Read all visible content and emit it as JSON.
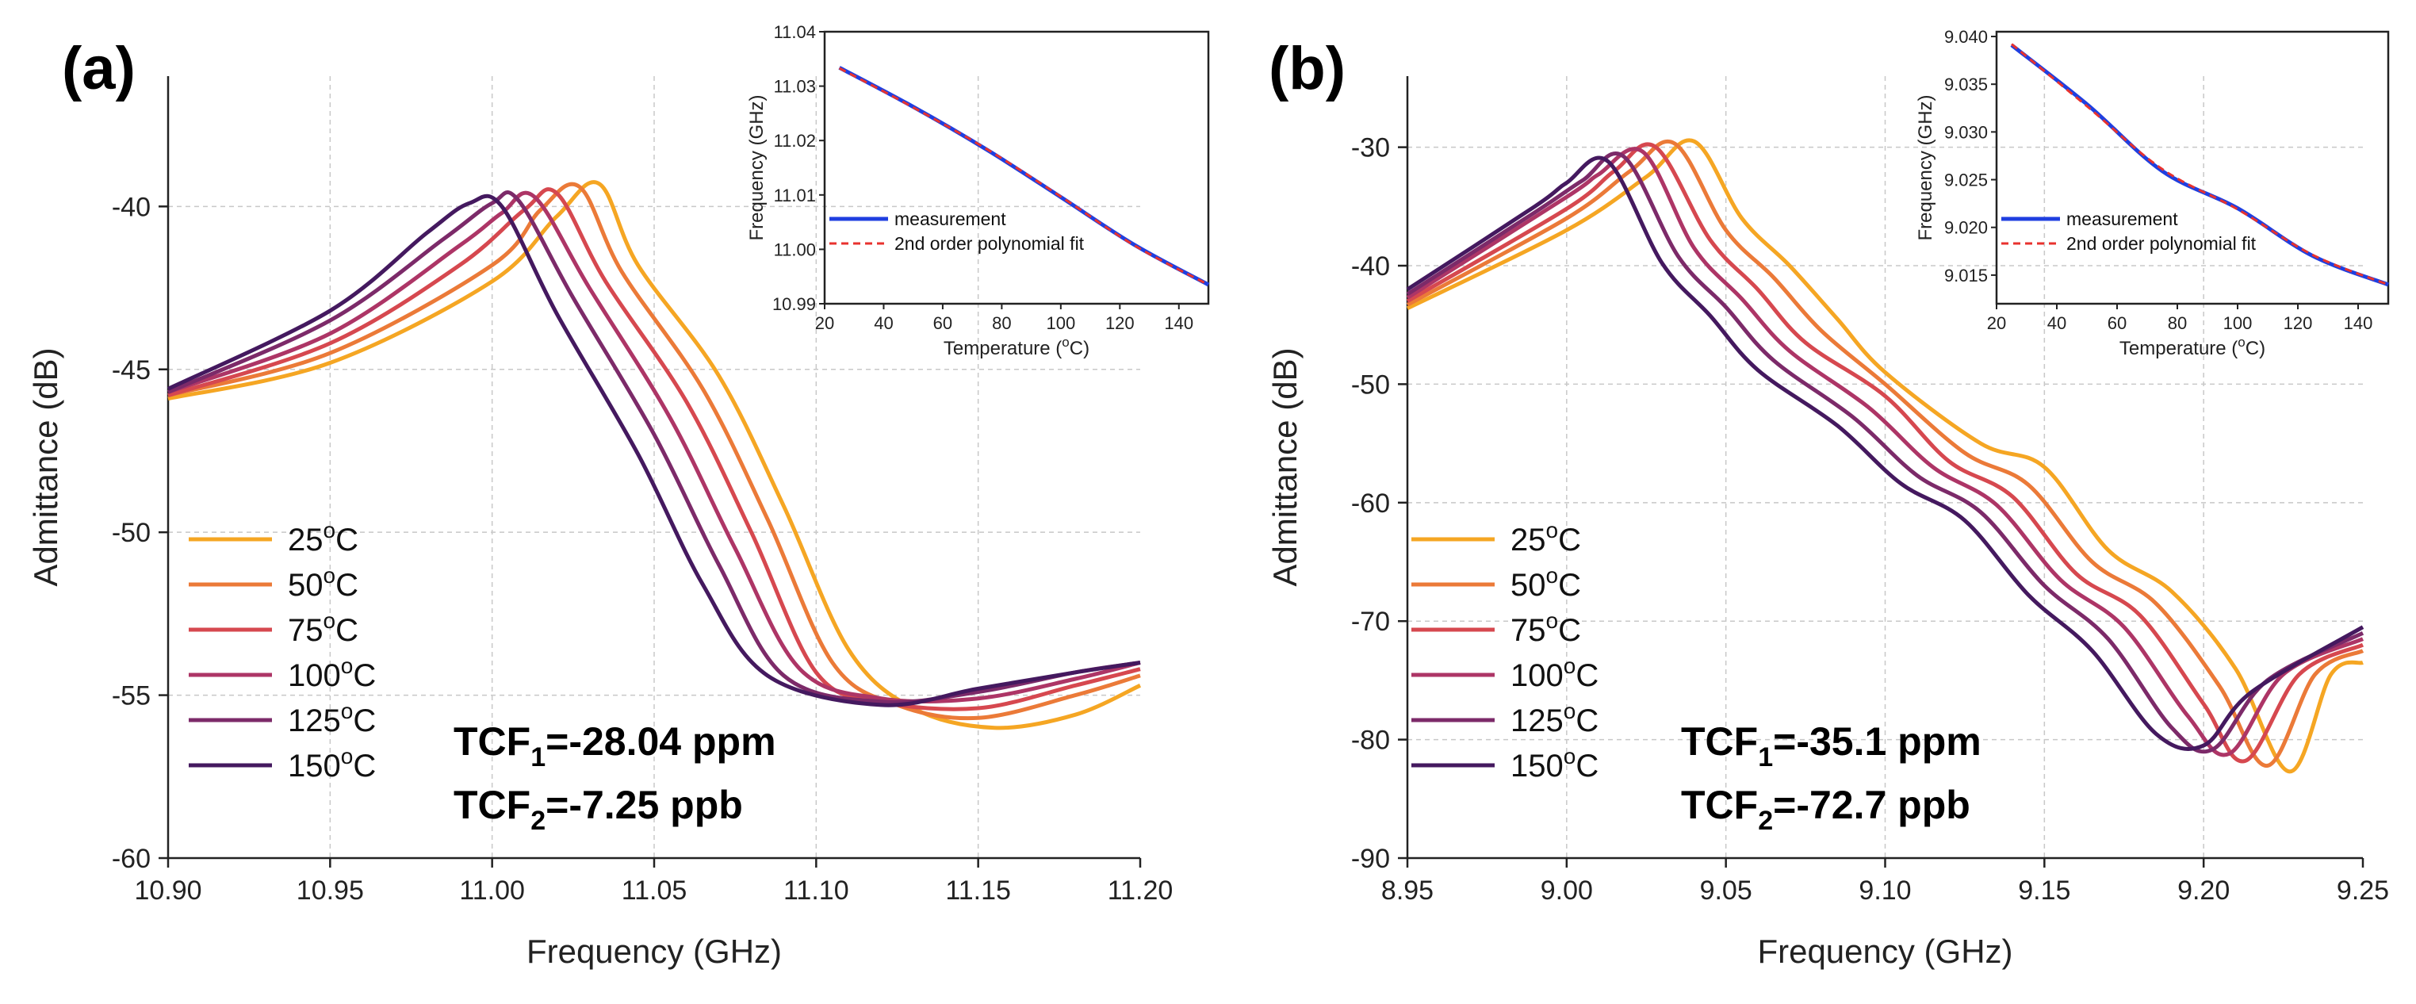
{
  "chart_data": [
    {
      "type": "line",
      "panel_label": "(a)",
      "xlabel": "Frequency (GHz)",
      "ylabel": "Admittance (dB)",
      "xlim": [
        10.9,
        11.2
      ],
      "ylim": [
        -60,
        -36
      ],
      "xticks": [
        10.9,
        10.95,
        11.0,
        11.05,
        11.1,
        11.15,
        11.2
      ],
      "xtick_labels": [
        "10.90",
        "10.95",
        "11.00",
        "11.05",
        "11.10",
        "11.15",
        "11.20"
      ],
      "yticks": [
        -60,
        -55,
        -50,
        -45,
        -40
      ],
      "ytick_labels": [
        "-60",
        "-55",
        "-50",
        "-45",
        "-40"
      ],
      "grid": true,
      "legend_position": "bottom-left",
      "series": [
        {
          "name": "25",
          "color": "#f5a623",
          "x": [
            10.9,
            10.95,
            11.0,
            11.02,
            11.033,
            11.045,
            11.07,
            11.09,
            11.11,
            11.13,
            11.155,
            11.18,
            11.2
          ],
          "y": [
            -45.9,
            -44.8,
            -42.3,
            -40.3,
            -39.3,
            -41.8,
            -45.2,
            -49.2,
            -53.6,
            -55.4,
            -56.0,
            -55.6,
            -54.7
          ]
        },
        {
          "name": "50",
          "color": "#eb7a38",
          "x": [
            10.9,
            10.95,
            11.0,
            11.015,
            11.027,
            11.04,
            11.065,
            11.085,
            11.105,
            11.125,
            11.15,
            11.18,
            11.2
          ],
          "y": [
            -45.8,
            -44.5,
            -41.8,
            -40.1,
            -39.4,
            -42.0,
            -45.6,
            -49.6,
            -54.0,
            -55.3,
            -55.7,
            -55.0,
            -54.4
          ]
        },
        {
          "name": "75",
          "color": "#d6484f",
          "x": [
            10.9,
            10.95,
            10.99,
            11.01,
            11.02,
            11.035,
            11.06,
            11.08,
            11.1,
            11.12,
            11.15,
            11.18,
            11.2
          ],
          "y": [
            -45.8,
            -44.2,
            -41.8,
            -40.1,
            -39.6,
            -42.3,
            -46.0,
            -50.0,
            -54.3,
            -55.2,
            -55.4,
            -54.7,
            -54.2
          ]
        },
        {
          "name": "100",
          "color": "#ad3566",
          "x": [
            10.9,
            10.95,
            10.99,
            11.003,
            11.013,
            11.03,
            11.055,
            11.075,
            11.095,
            11.12,
            11.15,
            11.18,
            11.2
          ],
          "y": [
            -45.7,
            -43.9,
            -41.2,
            -40.2,
            -39.7,
            -42.5,
            -46.5,
            -50.5,
            -54.2,
            -55.1,
            -55.1,
            -54.5,
            -54.0
          ]
        },
        {
          "name": "125",
          "color": "#7c2a69",
          "x": [
            10.9,
            10.95,
            10.985,
            11.0,
            11.008,
            11.025,
            11.05,
            11.07,
            11.09,
            11.12,
            11.15,
            11.18,
            11.2
          ],
          "y": [
            -45.7,
            -43.5,
            -41.0,
            -39.9,
            -39.8,
            -42.8,
            -47.0,
            -51.0,
            -54.4,
            -55.2,
            -54.9,
            -54.3,
            -54.0
          ]
        },
        {
          "name": "150",
          "color": "#44195f",
          "x": [
            10.9,
            10.95,
            10.98,
            10.993,
            11.003,
            11.02,
            11.045,
            11.065,
            11.085,
            11.12,
            11.15,
            11.18,
            11.2
          ],
          "y": [
            -45.6,
            -43.2,
            -40.8,
            -39.9,
            -40.0,
            -43.3,
            -47.6,
            -51.6,
            -54.4,
            -55.3,
            -54.8,
            -54.3,
            -54.0
          ]
        }
      ],
      "legend_labels": [
        "25",
        "50",
        "75",
        "100",
        "125",
        "150"
      ],
      "legend_unit_o": "o",
      "legend_unit_c": "C",
      "tcf1": {
        "prefix": "TCF",
        "sub": "1",
        "value": "=-28.04 ppm"
      },
      "tcf2": {
        "prefix": "TCF",
        "sub": "2",
        "value": "=-7.25 ppb"
      },
      "inset": {
        "type": "line",
        "xlabel_pre": "Temperature (",
        "xlabel_sup": "o",
        "xlabel_post": "C)",
        "ylabel": "Frequency (GHz)",
        "xlim": [
          20,
          150
        ],
        "ylim": [
          10.99,
          11.04
        ],
        "xticks": [
          20,
          40,
          60,
          80,
          100,
          120,
          140
        ],
        "xtick_labels": [
          "20",
          "40",
          "60",
          "80",
          "100",
          "120",
          "140"
        ],
        "yticks": [
          10.99,
          11.0,
          11.01,
          11.02,
          11.03,
          11.04
        ],
        "ytick_labels": [
          "10.99",
          "11.00",
          "11.01",
          "11.02",
          "11.03",
          "11.04"
        ],
        "series": [
          {
            "name": "measurement",
            "color": "#1f3fe0",
            "style": "solid",
            "x": [
              25,
              50,
              75,
              100,
              125,
              150
            ],
            "y": [
              11.0334,
              11.0262,
              11.0183,
              11.0096,
              11.0008,
              10.9935
            ]
          },
          {
            "name": "2nd order polynomial fit",
            "color": "#e8322e",
            "style": "dashed",
            "x": [
              25,
              50,
              75,
              100,
              125,
              150
            ],
            "y": [
              11.0333,
              11.0261,
              11.0184,
              11.0097,
              11.0007,
              10.9935
            ]
          }
        ]
      }
    },
    {
      "type": "line",
      "panel_label": "(b)",
      "xlabel": "Frequency (GHz)",
      "ylabel": "Admittance (dB)",
      "xlim": [
        8.95,
        9.25
      ],
      "ylim": [
        -90,
        -24
      ],
      "xticks": [
        8.95,
        9.0,
        9.05,
        9.1,
        9.15,
        9.2,
        9.25
      ],
      "xtick_labels": [
        "8.95",
        "9.00",
        "9.05",
        "9.10",
        "9.15",
        "9.20",
        "9.25"
      ],
      "yticks": [
        -90,
        -80,
        -70,
        -60,
        -50,
        -40,
        -30
      ],
      "ytick_labels": [
        "-90",
        "-80",
        "-70",
        "-60",
        "-50",
        "-40",
        "-30"
      ],
      "grid": true,
      "legend_position": "bottom-left",
      "series": [
        {
          "name": "25",
          "color": "#f5a623",
          "x": [
            8.95,
            9.0,
            9.025,
            9.04,
            9.055,
            9.07,
            9.085,
            9.1,
            9.13,
            9.15,
            9.17,
            9.19,
            9.21,
            9.227,
            9.24,
            9.25
          ],
          "y": [
            -43.6,
            -37.0,
            -32.5,
            -29.5,
            -36.0,
            -40.0,
            -44.5,
            -49.0,
            -55.0,
            -57.0,
            -64.0,
            -67.5,
            -74.0,
            -82.7,
            -74.5,
            -73.5
          ]
        },
        {
          "name": "50",
          "color": "#eb7a38",
          "x": [
            8.95,
            9.0,
            9.02,
            9.034,
            9.05,
            9.065,
            9.08,
            9.1,
            9.125,
            9.145,
            9.165,
            9.185,
            9.205,
            9.22,
            9.235,
            9.25
          ],
          "y": [
            -43.3,
            -36.0,
            -32.0,
            -29.7,
            -37.0,
            -41.0,
            -45.5,
            -50.0,
            -55.8,
            -58.5,
            -65.0,
            -68.5,
            -75.5,
            -82.2,
            -74.5,
            -72.5
          ]
        },
        {
          "name": "75",
          "color": "#d6484f",
          "x": [
            8.95,
            9.0,
            9.015,
            9.028,
            9.045,
            9.06,
            9.075,
            9.1,
            9.12,
            9.14,
            9.16,
            9.18,
            9.2,
            9.213,
            9.23,
            9.25
          ],
          "y": [
            -43.0,
            -35.2,
            -32.0,
            -30.0,
            -37.8,
            -42.0,
            -46.5,
            -51.0,
            -56.5,
            -59.5,
            -66.0,
            -69.5,
            -77.0,
            -81.8,
            -74.5,
            -72.0
          ]
        },
        {
          "name": "100",
          "color": "#ad3566",
          "x": [
            8.95,
            9.0,
            9.01,
            9.024,
            9.04,
            9.055,
            9.07,
            9.095,
            9.115,
            9.135,
            9.155,
            9.175,
            9.195,
            9.208,
            9.225,
            9.25
          ],
          "y": [
            -42.7,
            -34.2,
            -32.3,
            -30.4,
            -38.5,
            -42.8,
            -47.2,
            -52.0,
            -57.0,
            -60.2,
            -66.5,
            -70.5,
            -78.0,
            -81.2,
            -74.5,
            -71.5
          ]
        },
        {
          "name": "125",
          "color": "#7c2a69",
          "x": [
            8.95,
            8.99,
            9.005,
            9.018,
            9.035,
            9.05,
            9.065,
            9.09,
            9.11,
            9.13,
            9.15,
            9.17,
            9.19,
            9.203,
            9.22,
            9.25
          ],
          "y": [
            -42.4,
            -35.5,
            -32.8,
            -30.8,
            -39.2,
            -43.5,
            -48.0,
            -52.8,
            -57.7,
            -60.8,
            -67.0,
            -71.5,
            -79.0,
            -80.8,
            -75.0,
            -71.0
          ]
        },
        {
          "name": "150",
          "color": "#44195f",
          "x": [
            8.95,
            8.99,
            9.0,
            9.013,
            9.03,
            9.045,
            9.06,
            9.085,
            9.105,
            9.125,
            9.145,
            9.165,
            9.185,
            9.2,
            9.215,
            9.25
          ],
          "y": [
            -42.0,
            -35.0,
            -33.0,
            -31.2,
            -39.8,
            -44.2,
            -48.8,
            -53.5,
            -58.4,
            -61.5,
            -67.8,
            -72.5,
            -79.5,
            -80.5,
            -76.0,
            -70.5
          ]
        }
      ],
      "legend_labels": [
        "25",
        "50",
        "75",
        "100",
        "125",
        "150"
      ],
      "legend_unit_o": "o",
      "legend_unit_c": "C",
      "tcf1": {
        "prefix": "TCF",
        "sub": "1",
        "value": "=-35.1 ppm"
      },
      "tcf2": {
        "prefix": "TCF",
        "sub": "2",
        "value": "=-72.7 ppb"
      },
      "inset": {
        "type": "line",
        "xlabel_pre": "Temperature (",
        "xlabel_sup": "o",
        "xlabel_post": "C)",
        "ylabel": "Frequency (GHz)",
        "xlim": [
          20,
          150
        ],
        "ylim": [
          9.012,
          9.0405
        ],
        "xticks": [
          20,
          40,
          60,
          80,
          100,
          120,
          140
        ],
        "xtick_labels": [
          "20",
          "40",
          "60",
          "80",
          "100",
          "120",
          "140"
        ],
        "yticks": [
          9.015,
          9.02,
          9.025,
          9.03,
          9.035,
          9.04
        ],
        "ytick_labels": [
          "9.015",
          "9.020",
          "9.025",
          "9.030",
          "9.035",
          "9.040"
        ],
        "series": [
          {
            "name": "measurement",
            "color": "#1f3fe0",
            "style": "solid",
            "x": [
              25,
              50,
              75,
              100,
              125,
              150
            ],
            "y": [
              9.0391,
              9.0329,
              9.0259,
              9.022,
              9.017,
              9.014
            ]
          },
          {
            "name": "2nd order polynomial fit",
            "color": "#e8322e",
            "style": "dashed",
            "x": [
              25,
              50,
              75,
              100,
              125,
              150
            ],
            "y": [
              9.0392,
              9.0327,
              9.0261,
              9.0219,
              9.0171,
              9.014
            ]
          }
        ]
      }
    }
  ]
}
